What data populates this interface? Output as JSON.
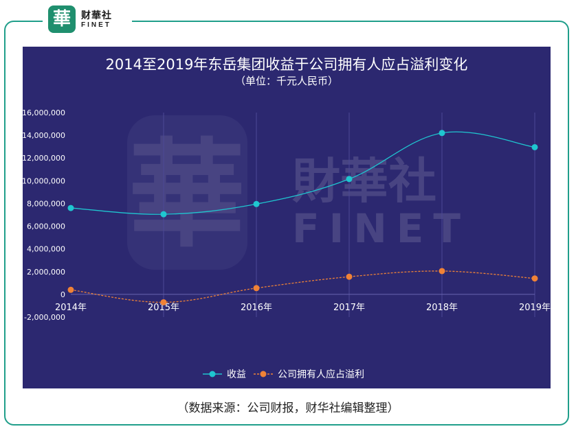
{
  "logo": {
    "mark": "華",
    "cn": "财華社",
    "en": "FINET"
  },
  "watermark": {
    "mark": "華",
    "cn": "財華社",
    "en": "FINET"
  },
  "caption": "（数据来源：公司财报，财华社编辑整理）",
  "colors": {
    "panel": "#2c2870",
    "series1": "#1fc6d0",
    "series2": "#f08236",
    "frame": "#1f9e8a"
  },
  "chart_data": {
    "type": "line",
    "title": "2014至2019年东岳集团收益于公司拥有人应占溢利变化",
    "subtitle": "（单位：千元人民币）",
    "categories": [
      "2014年",
      "2015年",
      "2016年",
      "2017年",
      "2018年",
      "2019年"
    ],
    "series": [
      {
        "name": "收益",
        "values": [
          7600000,
          7050000,
          7950000,
          10150000,
          14200000,
          12950000
        ]
      },
      {
        "name": "公司拥有人应占溢利",
        "values": [
          400000,
          -700000,
          550000,
          1550000,
          2050000,
          1400000
        ]
      }
    ],
    "ylim": [
      -2000000,
      16000000
    ],
    "yticks": [
      "16,000,000",
      "14,000,000",
      "12,000,000",
      "10,000,000",
      "8,000,000",
      "6,000,000",
      "4,000,000",
      "2,000,000",
      "0",
      "-2,000,000"
    ],
    "legend_position": "bottom-center",
    "grid": "vertical"
  }
}
